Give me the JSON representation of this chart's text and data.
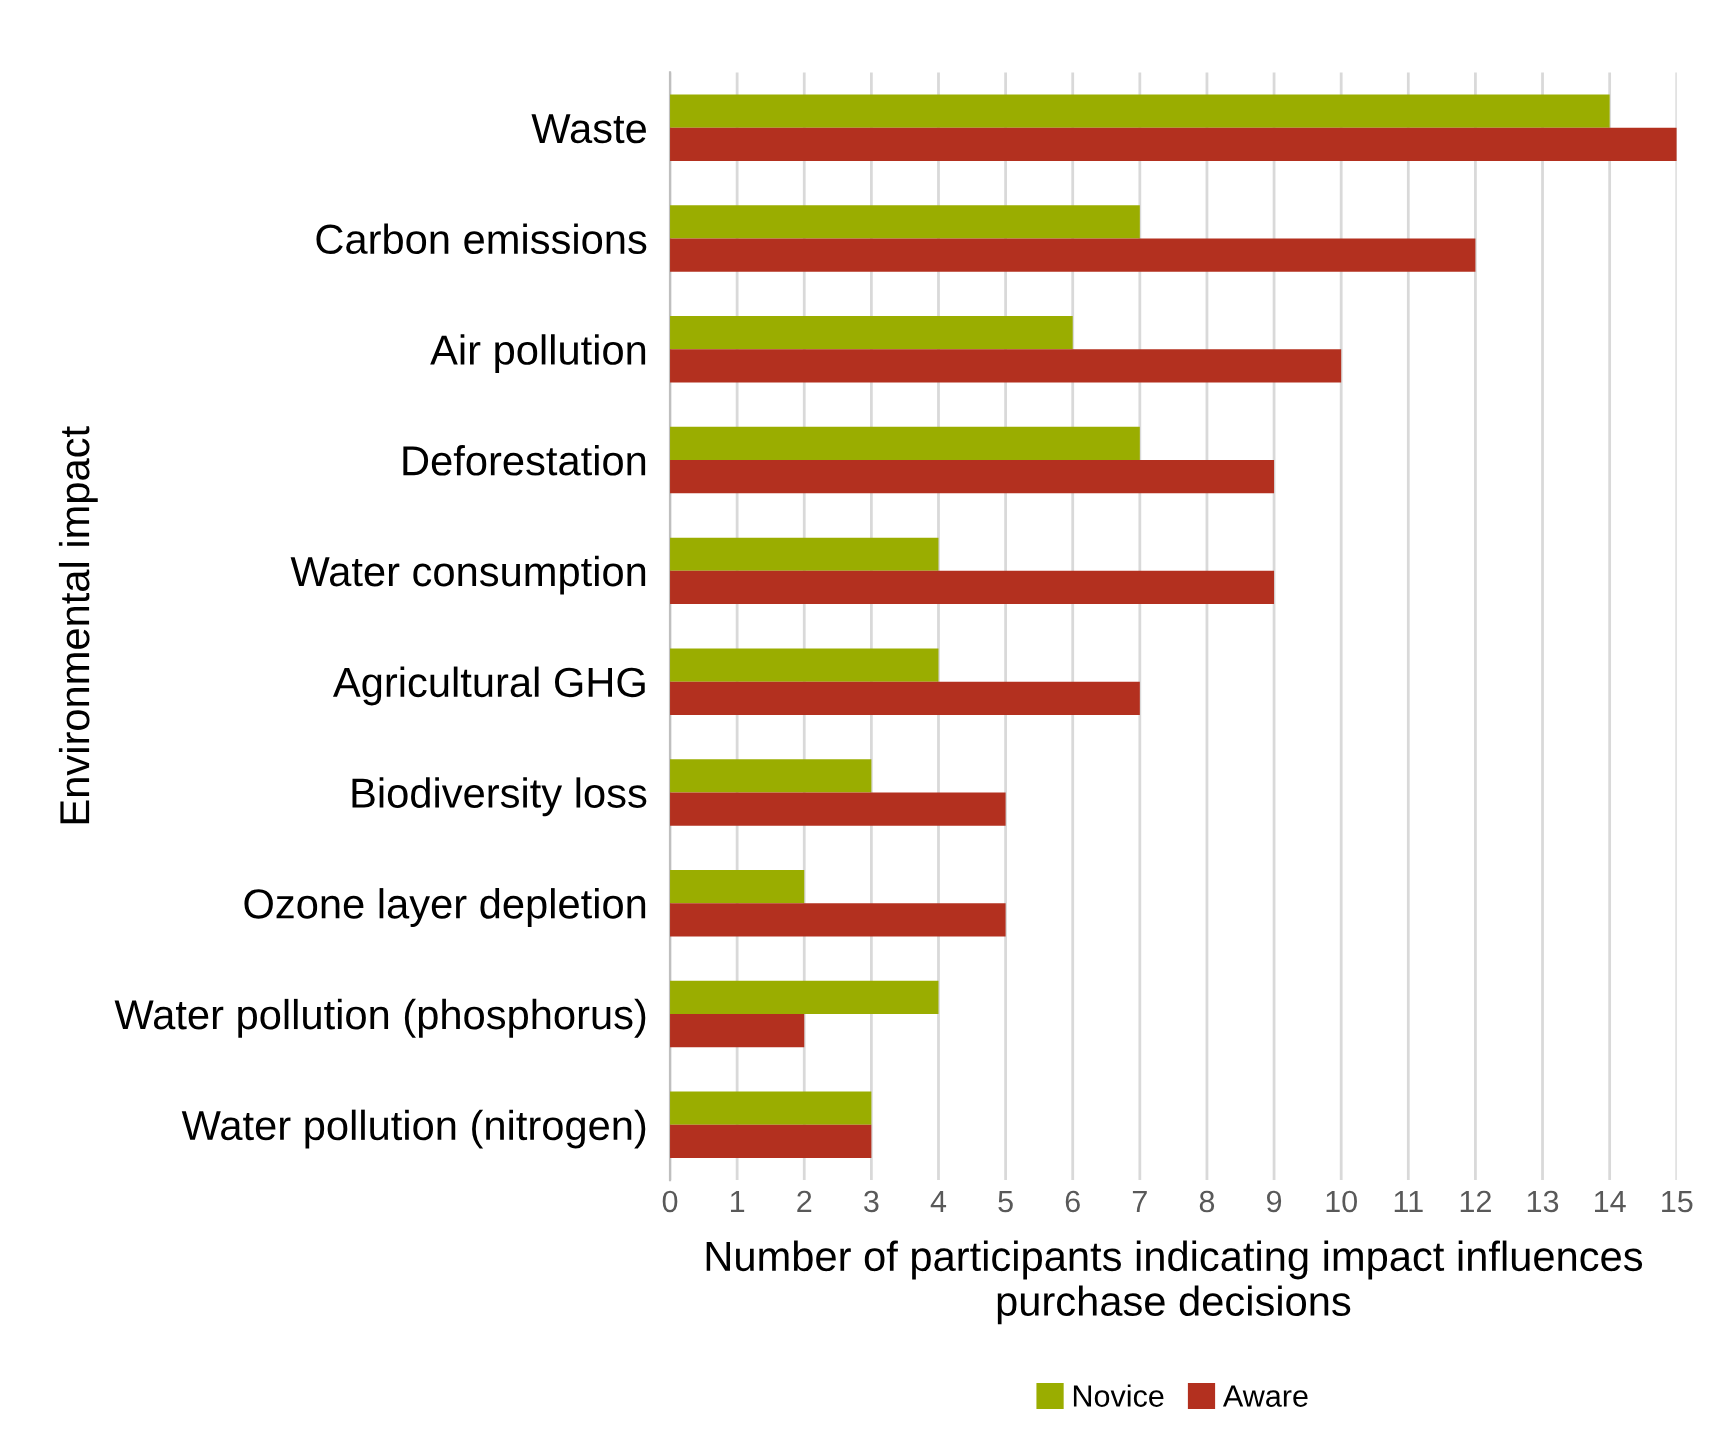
{
  "chart_data": {
    "type": "bar",
    "orientation": "horizontal",
    "categories": [
      "Waste",
      "Carbon emissions",
      "Air pollution",
      "Deforestation",
      "Water consumption",
      "Agricultural GHG",
      "Biodiversity loss",
      "Ozone layer depletion",
      "Water pollution (phosphorus)",
      "Water pollution (nitrogen)"
    ],
    "series": [
      {
        "name": "Novice",
        "color": "#9aad00",
        "values": [
          14,
          7,
          6,
          7,
          4,
          4,
          3,
          2,
          4,
          3
        ]
      },
      {
        "name": "Aware",
        "color": "#b3301f",
        "values": [
          15,
          12,
          10,
          9,
          9,
          7,
          5,
          5,
          2,
          3
        ]
      }
    ],
    "xlabel": "Number of participants indicating impact influences purchase decisions",
    "ylabel": "Environmental impact",
    "xlim": [
      0,
      15
    ],
    "xticks": [
      0,
      1,
      2,
      3,
      4,
      5,
      6,
      7,
      8,
      9,
      10,
      11,
      12,
      13,
      14,
      15
    ],
    "grid": "x",
    "legend": "bottom"
  }
}
